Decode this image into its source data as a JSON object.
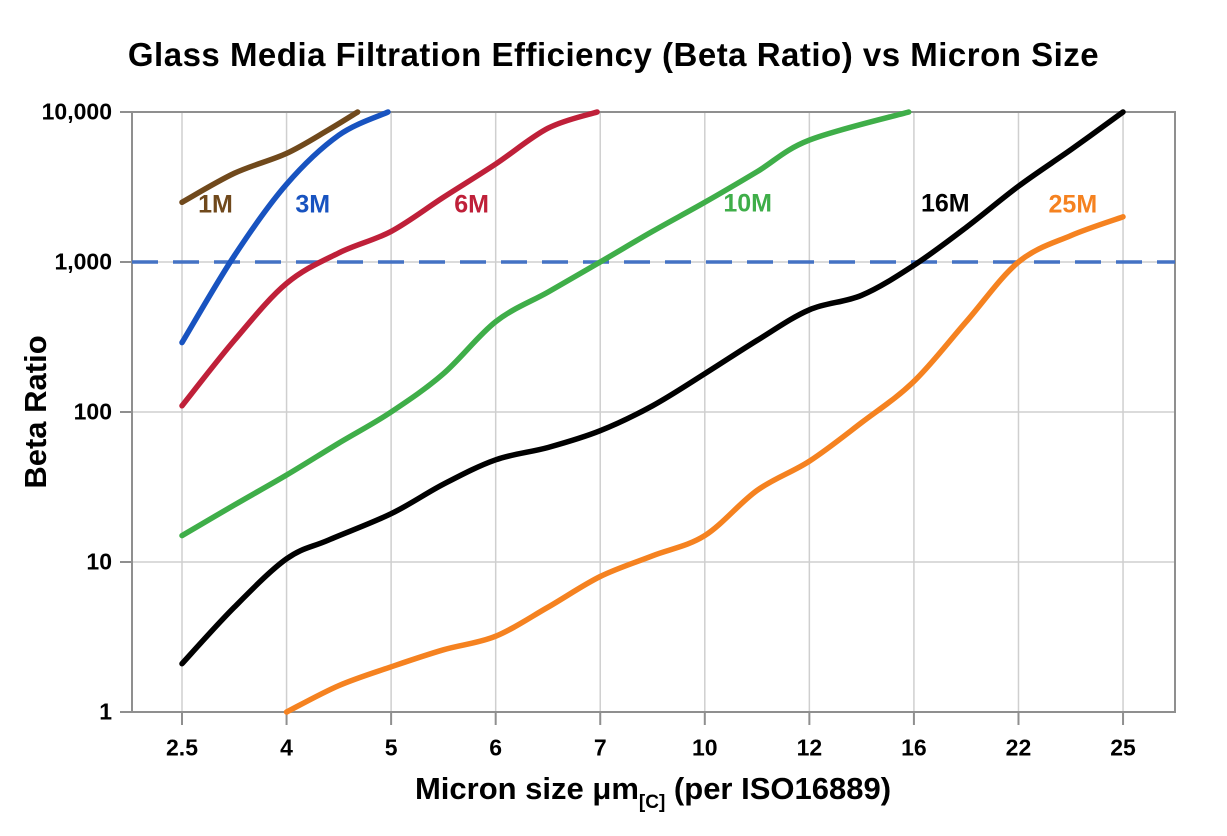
{
  "chart_data": {
    "type": "line",
    "title": "Glass Media Filtration Efficiency (Beta Ratio) vs Micron Size",
    "background_color": "#FFFFFF",
    "x_axis": {
      "label_main": "Micron size μm",
      "label_sub": "[C]",
      "label_suffix": " (per ISO16889)",
      "scale": "categorical",
      "categories": [
        "2.5",
        "4",
        "5",
        "6",
        "7",
        "10",
        "12",
        "16",
        "22",
        "25"
      ],
      "tick_values": [
        2.5,
        4,
        5,
        6,
        7,
        10,
        12,
        16,
        22,
        25
      ]
    },
    "y_axis": {
      "label": "Beta Ratio",
      "scale": "log",
      "tick_labels": [
        "10,000",
        "1,000",
        "100",
        "10",
        "1"
      ],
      "tick_values": [
        10000,
        1000,
        100,
        10,
        1
      ],
      "range": [
        1,
        10000
      ]
    },
    "grid": {
      "show": true,
      "color": "#CFCFCF"
    },
    "plot_border_color": "#8F8F8F",
    "reference_line": {
      "value": 1000,
      "color": "#4472C4",
      "style": "dashed"
    },
    "points_format": "[x_category_position, beta_ratio]; integer positions index x_axis.categories (e.g. 0=2.5μm, 5=10μm), fractional positions are curve shape samples between ticks",
    "series": [
      {
        "name": "1M",
        "color": "#70491C",
        "label_anchor": {
          "cat": 0.32,
          "beta": 2400
        },
        "points": [
          [
            0,
            2500
          ],
          [
            0.5,
            3900
          ],
          [
            1,
            5300
          ],
          [
            1.4,
            7600
          ],
          [
            1.68,
            10000
          ]
        ]
      },
      {
        "name": "3M",
        "color": "#1853C0",
        "label_anchor": {
          "cat": 1.25,
          "beta": 2400
        },
        "points": [
          [
            0,
            290
          ],
          [
            0.5,
            1100
          ],
          [
            1,
            3300
          ],
          [
            1.5,
            7000
          ],
          [
            1.97,
            10000
          ]
        ]
      },
      {
        "name": "6M",
        "color": "#BF2039",
        "label_anchor": {
          "cat": 2.77,
          "beta": 2400
        },
        "points": [
          [
            0,
            110
          ],
          [
            0.5,
            300
          ],
          [
            1,
            720
          ],
          [
            1.5,
            1150
          ],
          [
            2,
            1600
          ],
          [
            2.5,
            2700
          ],
          [
            3,
            4500
          ],
          [
            3.5,
            7800
          ],
          [
            3.97,
            10000
          ]
        ]
      },
      {
        "name": "10M",
        "color": "#3FAE49",
        "label_anchor": {
          "cat": 5.41,
          "beta": 2450
        },
        "points": [
          [
            0,
            15
          ],
          [
            0.5,
            24
          ],
          [
            1,
            38
          ],
          [
            1.5,
            62
          ],
          [
            2,
            100
          ],
          [
            2.5,
            180
          ],
          [
            3,
            400
          ],
          [
            3.5,
            630
          ],
          [
            4,
            1000
          ],
          [
            4.5,
            1600
          ],
          [
            5,
            2500
          ],
          [
            5.5,
            4000
          ],
          [
            6,
            6500
          ],
          [
            6.95,
            10000
          ]
        ]
      },
      {
        "name": "16M",
        "color": "#000000",
        "label_anchor": {
          "cat": 7.3,
          "beta": 2430
        },
        "points": [
          [
            0,
            2.1
          ],
          [
            0.5,
            5
          ],
          [
            1,
            10.5
          ],
          [
            1.4,
            14
          ],
          [
            2,
            21
          ],
          [
            2.5,
            33
          ],
          [
            3,
            48
          ],
          [
            3.5,
            58
          ],
          [
            4,
            75
          ],
          [
            4.5,
            110
          ],
          [
            5,
            180
          ],
          [
            5.5,
            300
          ],
          [
            6,
            480
          ],
          [
            6.5,
            600
          ],
          [
            7,
            950
          ],
          [
            7.5,
            1700
          ],
          [
            8,
            3200
          ],
          [
            8.5,
            5600
          ],
          [
            9,
            10000
          ]
        ]
      },
      {
        "name": "25M",
        "color": "#F58220",
        "label_anchor": {
          "cat": 8.52,
          "beta": 2400
        },
        "points": [
          [
            1,
            1
          ],
          [
            1.5,
            1.5
          ],
          [
            2,
            2
          ],
          [
            2.5,
            2.6
          ],
          [
            3,
            3.2
          ],
          [
            3.5,
            5
          ],
          [
            4,
            8
          ],
          [
            4.5,
            11
          ],
          [
            5,
            15
          ],
          [
            5.5,
            30
          ],
          [
            6,
            47
          ],
          [
            6.5,
            85
          ],
          [
            7,
            160
          ],
          [
            7.5,
            400
          ],
          [
            8,
            1000
          ],
          [
            8.5,
            1500
          ],
          [
            9,
            2000
          ]
        ]
      }
    ]
  }
}
